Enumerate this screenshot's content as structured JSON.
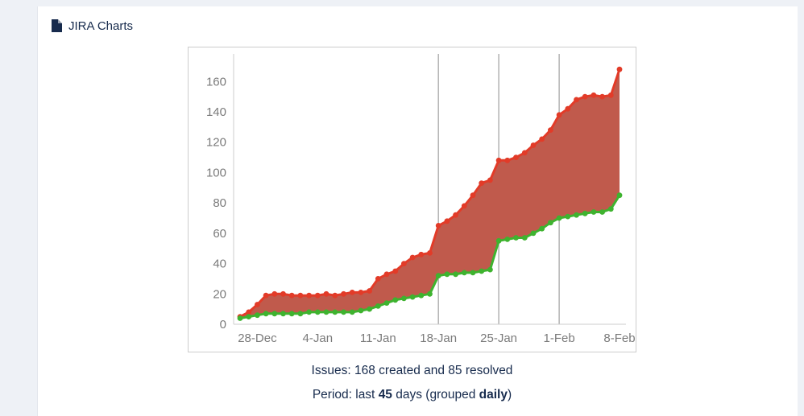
{
  "header": {
    "title": "JIRA Charts"
  },
  "summary": {
    "issues_line": "Issues: 168 created and 85 resolved",
    "period_prefix": "Period: last ",
    "period_days": "45",
    "period_mid": " days (grouped ",
    "period_group": "daily",
    "period_suffix": ")"
  },
  "chart_data": {
    "type": "area",
    "title": "",
    "xlabel": "",
    "ylabel": "",
    "x_max": 44,
    "ylim": [
      0,
      175
    ],
    "y_ticks": [
      0,
      20,
      40,
      60,
      80,
      100,
      120,
      140,
      160
    ],
    "x_ticks": [
      {
        "day": 2,
        "label": "28-Dec"
      },
      {
        "day": 9,
        "label": "4-Jan"
      },
      {
        "day": 16,
        "label": "11-Jan"
      },
      {
        "day": 23,
        "label": "18-Jan"
      },
      {
        "day": 30,
        "label": "25-Jan"
      },
      {
        "day": 37,
        "label": "1-Feb"
      },
      {
        "day": 44,
        "label": "8-Feb"
      }
    ],
    "gridline_days": [
      23,
      30,
      37
    ],
    "grid_color": "#b3b3b3",
    "axis_color": "#cccccc",
    "area_color": "#c05a4c",
    "legend": "none",
    "series": [
      {
        "name": "created",
        "color": "#e23b28",
        "values": [
          5,
          8,
          13,
          19,
          20,
          20,
          19,
          19,
          19,
          19,
          20,
          19,
          20,
          21,
          21,
          22,
          30,
          33,
          35,
          40,
          44,
          46,
          47,
          65,
          68,
          72,
          78,
          85,
          93,
          95,
          108,
          108,
          110,
          113,
          118,
          122,
          128,
          138,
          142,
          148,
          150,
          151,
          150,
          151,
          168
        ]
      },
      {
        "name": "resolved",
        "color": "#3eb32f",
        "values": [
          4,
          5,
          6,
          7,
          7,
          7,
          7,
          7,
          8,
          8,
          8,
          8,
          8,
          8,
          9,
          10,
          12,
          14,
          16,
          17,
          18,
          19,
          20,
          32,
          33,
          33,
          34,
          34,
          35,
          36,
          55,
          56,
          57,
          57,
          60,
          63,
          67,
          70,
          71,
          72,
          73,
          74,
          74,
          76,
          85
        ]
      }
    ]
  }
}
